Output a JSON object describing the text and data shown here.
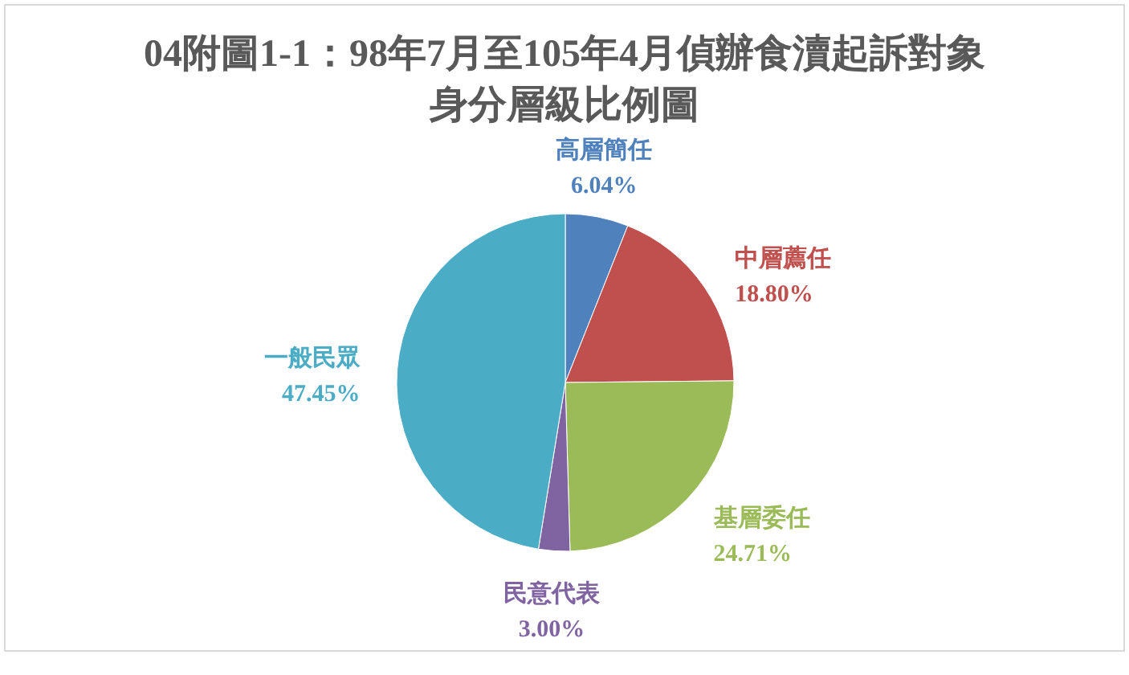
{
  "chart_data": {
    "type": "pie",
    "title": "04附圖1-1：98年7月至105年4月偵辦食瀆起訴對象身分層級比例圖",
    "categories": [
      "高層簡任",
      "中層薦任",
      "基層委任",
      "民意代表",
      "一般民眾"
    ],
    "values": [
      6.04,
      18.8,
      24.71,
      3.0,
      47.45
    ],
    "value_labels": [
      "6.04%",
      "18.80%",
      "24.71%",
      "3.00%",
      "47.45%"
    ],
    "colors": [
      "#4f81bd",
      "#c0504d",
      "#9bbb59",
      "#8064a2",
      "#4bacc6"
    ]
  }
}
